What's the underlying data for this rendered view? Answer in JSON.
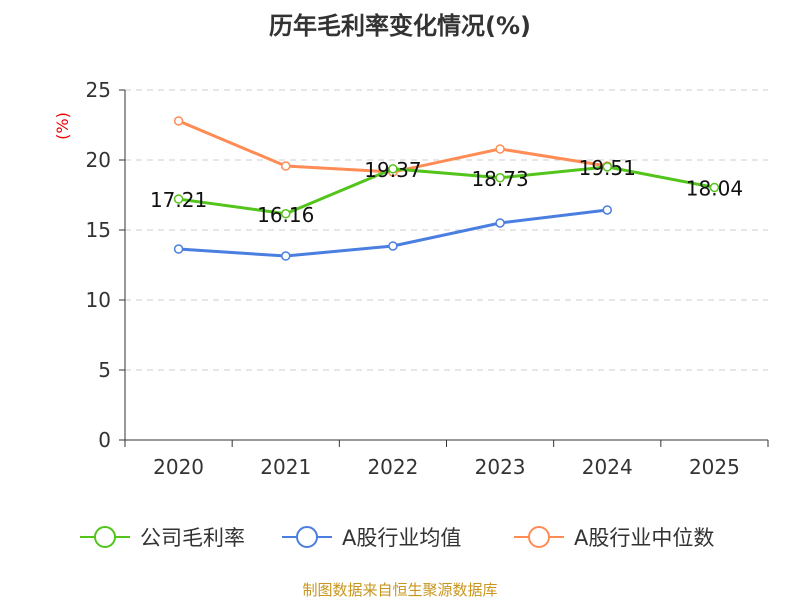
{
  "chart_data": {
    "type": "line",
    "title": "历年毛利率变化情况(%)",
    "ylabel": "(%)",
    "categories": [
      "2020",
      "2021",
      "2022",
      "2023",
      "2024",
      "2025"
    ],
    "ylim": [
      0,
      25
    ],
    "yticks": [
      0,
      5,
      10,
      15,
      20,
      25
    ],
    "grid": true,
    "legend_position": "bottom",
    "series": [
      {
        "name": "公司毛利率",
        "color": "#52c41a",
        "values": [
          17.21,
          16.16,
          19.37,
          18.73,
          19.51,
          18.04
        ],
        "labels": true
      },
      {
        "name": "A股行业均值",
        "color": "#4a7ee0",
        "values": [
          13.64,
          13.14,
          13.86,
          15.5,
          16.43,
          null
        ],
        "labels": false
      },
      {
        "name": "A股行业中位数",
        "color": "#ff8c55",
        "values": [
          22.79,
          19.57,
          19.14,
          20.79,
          19.57,
          null
        ],
        "labels": false
      }
    ]
  },
  "footer": "制图数据来自恒生聚源数据库"
}
